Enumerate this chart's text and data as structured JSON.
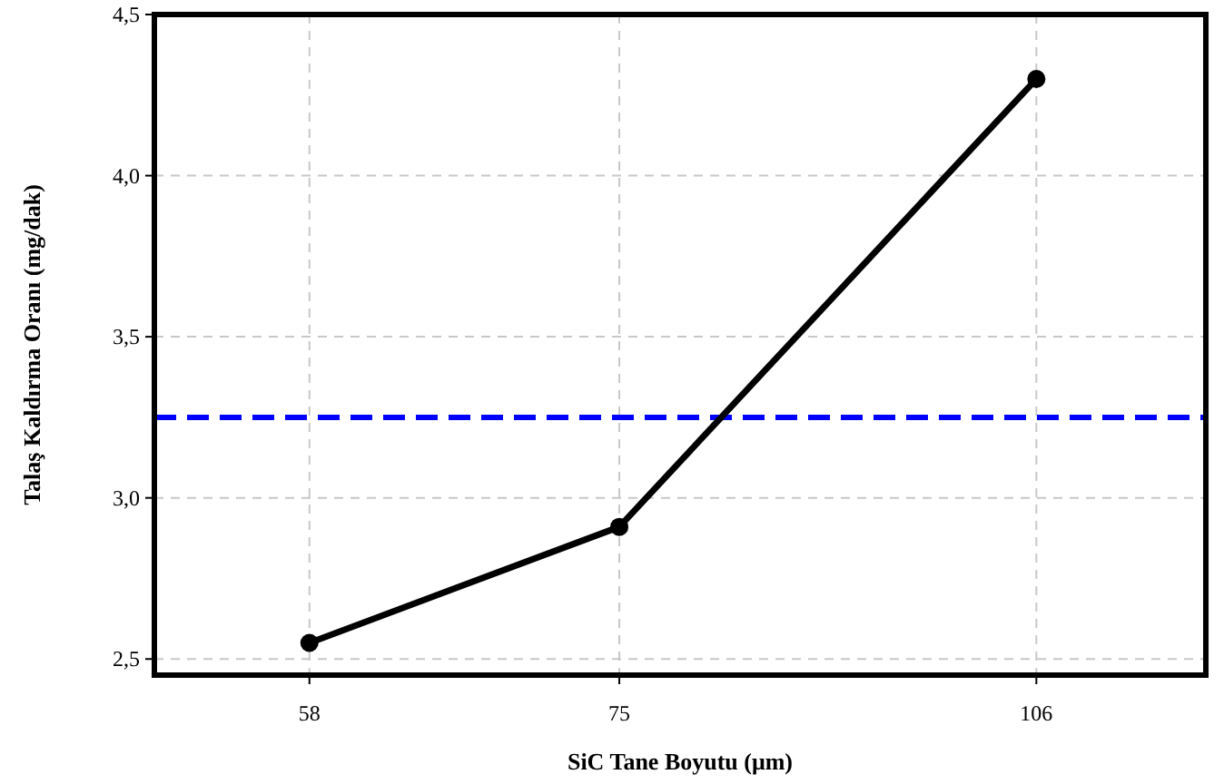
{
  "chart_data": {
    "type": "line",
    "xlabel": "SiC Tane Boyutu (μm)",
    "ylabel": "Talaş Kaldırma Oranı (mg/dak)",
    "x": [
      58,
      75,
      106
    ],
    "series": [
      {
        "color": "#000000",
        "values": [
          2.55,
          2.91,
          4.3
        ]
      }
    ],
    "log": "x",
    "xlim": [
      51,
      122
    ],
    "xticks": [
      58,
      75,
      106
    ],
    "ylim": [
      2.45,
      4.5
    ],
    "yticks": [
      {
        "value": 2.5,
        "label": "2,5"
      },
      {
        "value": 3,
        "label": "3,0"
      },
      {
        "value": 3.5,
        "label": "3,5"
      },
      {
        "value": 4,
        "label": "4,0"
      },
      {
        "value": 4.5,
        "label": "4,5"
      }
    ],
    "ref_lines": [
      {
        "axis": "y",
        "value": 3.25,
        "color": "#0000ff",
        "line_style": "dashed"
      }
    ],
    "grid": true,
    "marker": "circle",
    "line_style": "solid"
  }
}
